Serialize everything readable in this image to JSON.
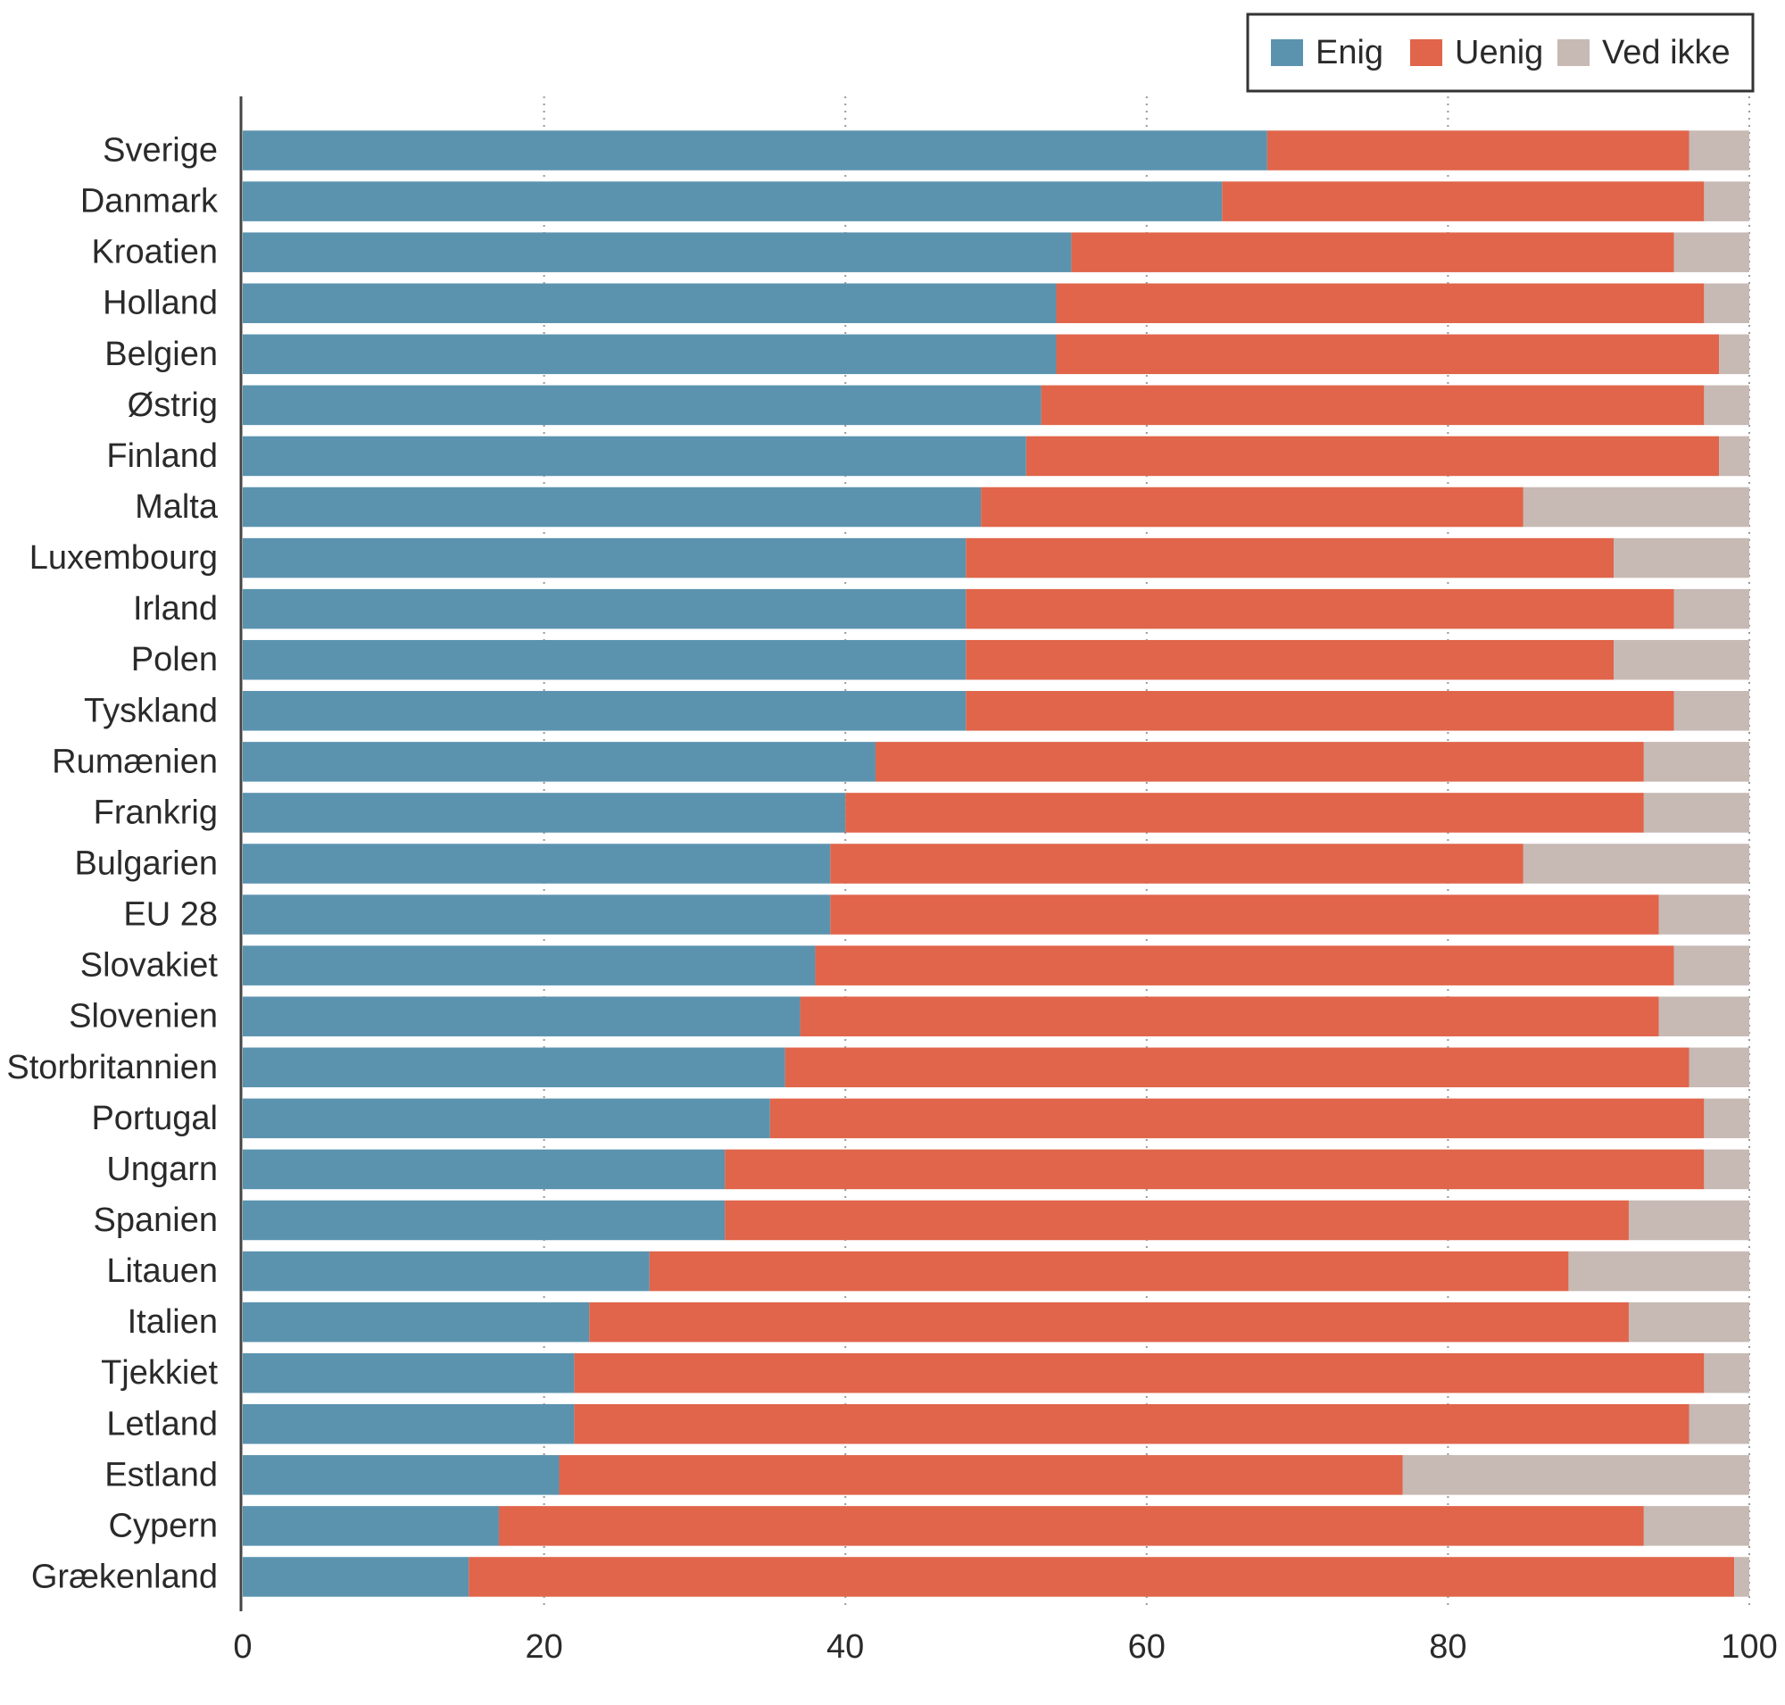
{
  "chart_data": {
    "type": "bar",
    "orientation": "horizontal",
    "stacked": true,
    "title": "",
    "xlabel": "",
    "ylabel": "",
    "xlim": [
      0,
      100
    ],
    "xticks": [
      "0",
      "20",
      "40",
      "60",
      "80",
      "100"
    ],
    "legend_position": "top-right",
    "grid": "vertical dotted",
    "categories": [
      "Sverige",
      "Danmark",
      "Kroatien",
      "Holland",
      "Belgien",
      "Østrig",
      "Finland",
      "Malta",
      "Luxembourg",
      "Irland",
      "Polen",
      "Tyskland",
      "Rumænien",
      "Frankrig",
      "Bulgarien",
      "EU 28",
      "Slovakiet",
      "Slovenien",
      "Storbritannien",
      "Portugal",
      "Ungarn",
      "Spanien",
      "Litauen",
      "Italien",
      "Tjekkiet",
      "Letland",
      "Estland",
      "Cypern",
      "Grækenland"
    ],
    "series": [
      {
        "name": "Enig",
        "color": "#5b93af",
        "values": [
          68,
          65,
          55,
          54,
          54,
          53,
          52,
          49,
          48,
          48,
          48,
          48,
          42,
          40,
          39,
          39,
          38,
          37,
          36,
          35,
          32,
          32,
          27,
          23,
          22,
          22,
          21,
          17,
          15
        ]
      },
      {
        "name": "Uenig",
        "color": "#e0654a",
        "values": [
          28,
          32,
          40,
          43,
          44,
          44,
          46,
          36,
          43,
          47,
          43,
          47,
          51,
          53,
          46,
          55,
          57,
          57,
          60,
          62,
          65,
          60,
          61,
          69,
          75,
          74,
          56,
          76,
          84
        ]
      },
      {
        "name": "Ved ikke",
        "color": "#c7b9b4",
        "values": [
          4,
          3,
          5,
          3,
          2,
          3,
          2,
          15,
          9,
          5,
          9,
          5,
          7,
          7,
          15,
          6,
          5,
          6,
          4,
          3,
          3,
          8,
          12,
          8,
          3,
          4,
          23,
          7,
          1
        ]
      }
    ]
  }
}
